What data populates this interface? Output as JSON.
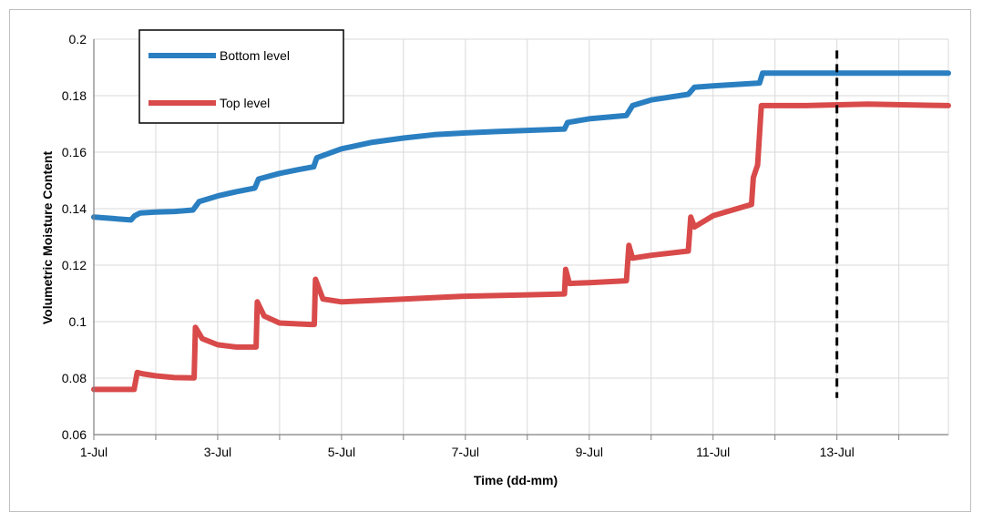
{
  "chart_data": {
    "type": "line",
    "title": "",
    "xlabel": "Time (dd-mm)",
    "ylabel": "Volumetric Moisture Content",
    "x_unit": "days of July",
    "xlim": [
      1,
      14.8
    ],
    "ylim": [
      0.06,
      0.2
    ],
    "x_ticks": [
      {
        "x": 1,
        "label": "1-Jul"
      },
      {
        "x": 3,
        "label": "3-Jul"
      },
      {
        "x": 5,
        "label": "5-Jul"
      },
      {
        "x": 7,
        "label": "7-Jul"
      },
      {
        "x": 9,
        "label": "9-Jul"
      },
      {
        "x": 11,
        "label": "11-Jul"
      },
      {
        "x": 13,
        "label": "13-Jul"
      }
    ],
    "x_minor_ticks": [
      2,
      4,
      6,
      8,
      10,
      12,
      14
    ],
    "y_ticks": [
      {
        "y": 0.06,
        "label": "0.06"
      },
      {
        "y": 0.08,
        "label": "0.08"
      },
      {
        "y": 0.1,
        "label": "0.1"
      },
      {
        "y": 0.12,
        "label": "0.12"
      },
      {
        "y": 0.14,
        "label": "0.14"
      },
      {
        "y": 0.16,
        "label": "0.16"
      },
      {
        "y": 0.18,
        "label": "0.18"
      },
      {
        "y": 0.2,
        "label": "0.2"
      }
    ],
    "grid": true,
    "legend_position": "top-left",
    "series": [
      {
        "name": "Bottom level",
        "color": "#2a7fc1",
        "points": [
          [
            1.0,
            0.137
          ],
          [
            1.3,
            0.1365
          ],
          [
            1.6,
            0.136
          ],
          [
            1.66,
            0.1375
          ],
          [
            1.75,
            0.1385
          ],
          [
            2.0,
            0.1388
          ],
          [
            2.3,
            0.139
          ],
          [
            2.6,
            0.1395
          ],
          [
            2.7,
            0.1425
          ],
          [
            3.0,
            0.1445
          ],
          [
            3.3,
            0.146
          ],
          [
            3.6,
            0.1473
          ],
          [
            3.66,
            0.1505
          ],
          [
            4.0,
            0.1525
          ],
          [
            4.3,
            0.1538
          ],
          [
            4.55,
            0.1548
          ],
          [
            4.6,
            0.158
          ],
          [
            5.0,
            0.1612
          ],
          [
            5.5,
            0.1635
          ],
          [
            6.0,
            0.165
          ],
          [
            6.5,
            0.1662
          ],
          [
            7.0,
            0.1668
          ],
          [
            7.5,
            0.1673
          ],
          [
            8.0,
            0.1677
          ],
          [
            8.6,
            0.1682
          ],
          [
            8.65,
            0.1705
          ],
          [
            9.0,
            0.1718
          ],
          [
            9.6,
            0.173
          ],
          [
            9.7,
            0.1765
          ],
          [
            10.0,
            0.1785
          ],
          [
            10.6,
            0.1805
          ],
          [
            10.7,
            0.183
          ],
          [
            11.0,
            0.1835
          ],
          [
            11.75,
            0.1845
          ],
          [
            11.8,
            0.188
          ],
          [
            12.5,
            0.188
          ],
          [
            13.5,
            0.188
          ],
          [
            14.8,
            0.188
          ]
        ]
      },
      {
        "name": "Top level",
        "color": "#d94a4a",
        "points": [
          [
            1.0,
            0.076
          ],
          [
            1.65,
            0.076
          ],
          [
            1.7,
            0.082
          ],
          [
            1.8,
            0.0815
          ],
          [
            2.0,
            0.0808
          ],
          [
            2.3,
            0.0802
          ],
          [
            2.62,
            0.0801
          ],
          [
            2.64,
            0.098
          ],
          [
            2.75,
            0.094
          ],
          [
            3.0,
            0.0918
          ],
          [
            3.3,
            0.091
          ],
          [
            3.62,
            0.091
          ],
          [
            3.64,
            0.107
          ],
          [
            3.75,
            0.102
          ],
          [
            4.0,
            0.0995
          ],
          [
            4.5,
            0.099
          ],
          [
            4.56,
            0.099
          ],
          [
            4.58,
            0.115
          ],
          [
            4.7,
            0.108
          ],
          [
            5.0,
            0.107
          ],
          [
            6.0,
            0.108
          ],
          [
            7.0,
            0.109
          ],
          [
            8.0,
            0.1095
          ],
          [
            8.6,
            0.1098
          ],
          [
            8.62,
            0.1185
          ],
          [
            8.68,
            0.1135
          ],
          [
            9.0,
            0.1138
          ],
          [
            9.6,
            0.1145
          ],
          [
            9.64,
            0.127
          ],
          [
            9.7,
            0.1225
          ],
          [
            10.0,
            0.1235
          ],
          [
            10.6,
            0.125
          ],
          [
            10.64,
            0.137
          ],
          [
            10.7,
            0.1335
          ],
          [
            11.0,
            0.1375
          ],
          [
            11.62,
            0.1415
          ],
          [
            11.65,
            0.151
          ],
          [
            11.72,
            0.1555
          ],
          [
            11.78,
            0.1765
          ],
          [
            12.5,
            0.1765
          ],
          [
            13.5,
            0.177
          ],
          [
            14.8,
            0.1765
          ]
        ]
      }
    ],
    "annotations": [
      {
        "type": "vertical-dashed-line",
        "x": 13,
        "y_from": 0.073,
        "y_to": 0.196,
        "color": "#000000"
      }
    ]
  }
}
